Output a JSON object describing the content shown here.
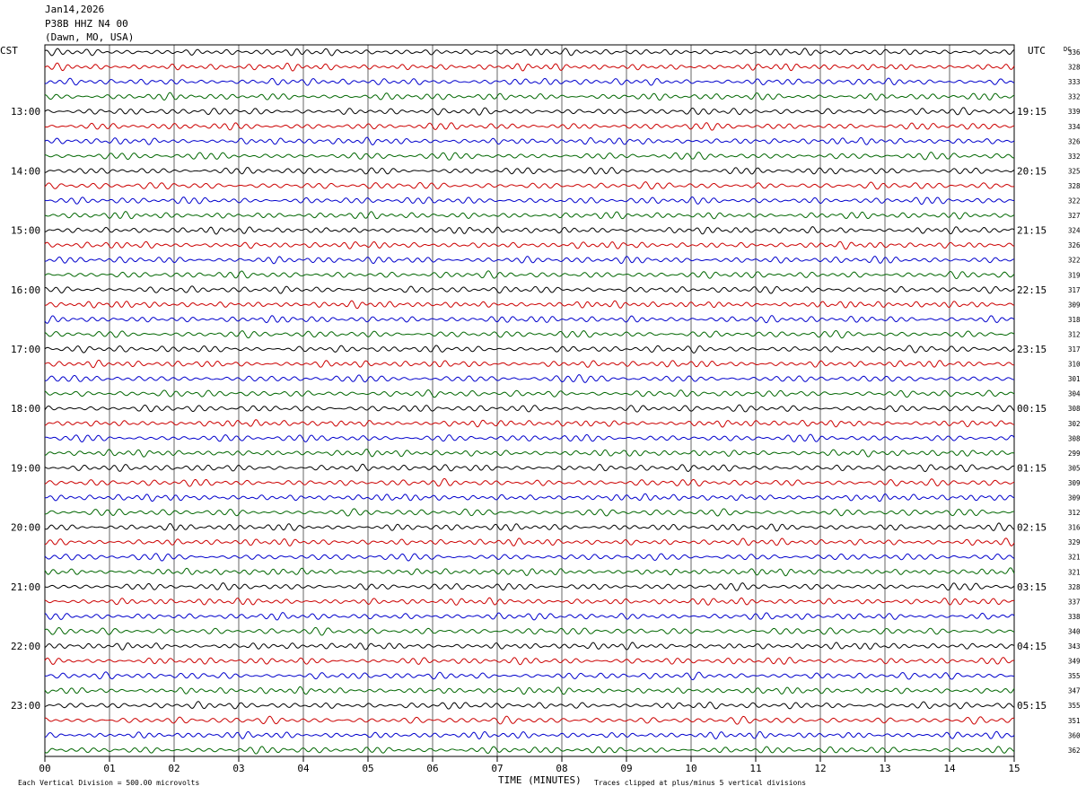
{
  "header": {
    "date": "Jan14,2026",
    "station": "P38B HHZ N4 00",
    "location": "(Dawn, MO, USA)"
  },
  "left_zone": "CST",
  "right_zone": "UTC",
  "dc_label": "DC",
  "footer": {
    "scale": "Each Vertical Division =  500.00 microvolts",
    "xlabel": "TIME (MINUTES)",
    "clip_note": "Traces clipped at plus/minus 5 vertical divisions"
  },
  "chart_data": {
    "type": "line",
    "xlabel": "TIME (MINUTES)",
    "xlim": [
      0,
      15
    ],
    "x_ticks": [
      "00",
      "01",
      "02",
      "03",
      "04",
      "05",
      "06",
      "07",
      "08",
      "09",
      "10",
      "11",
      "12",
      "13",
      "14",
      "15"
    ],
    "trace_colors": [
      "#000000",
      "#cc0000",
      "#0000cc",
      "#006600"
    ],
    "left_hour_labels": [
      "13:00",
      "14:00",
      "15:00",
      "16:00",
      "17:00",
      "18:00",
      "19:00",
      "20:00",
      "21:00",
      "22:00",
      "23:00"
    ],
    "right_hour_labels": [
      "19:15",
      "20:15",
      "21:15",
      "22:15",
      "23:15",
      "00:15",
      "01:15",
      "02:15",
      "03:15",
      "04:15",
      "05:15"
    ],
    "dc_offsets": [
      336,
      328,
      333,
      332,
      339,
      334,
      326,
      332,
      325,
      328,
      322,
      327,
      324,
      326,
      322,
      319,
      317,
      309,
      318,
      312,
      317,
      310,
      301,
      304,
      308,
      302,
      308,
      299,
      305,
      309,
      309,
      312,
      316,
      329,
      321,
      321,
      328,
      337,
      338,
      340,
      343,
      349,
      355,
      347,
      355,
      351,
      360,
      362
    ]
  }
}
